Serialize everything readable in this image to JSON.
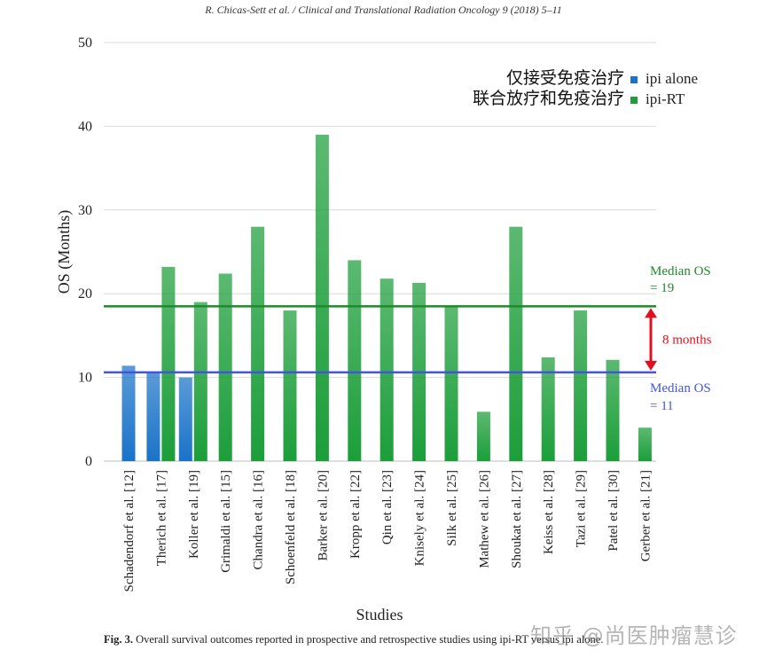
{
  "header": {
    "citation": "R. Chicas-Sett et al. / Clinical and Translational Radiation Oncology 9 (2018) 5–11"
  },
  "caption": {
    "label": "Fig. 3.",
    "text": "Overall survival outcomes reported in prospective and retrospective studies using ipi-RT versus ipi alone."
  },
  "watermark": "知乎 @尚医肿瘤慧诊",
  "colors": {
    "ipi_alone": "#1a73c8",
    "ipi_rt": "#1c9e3a",
    "median_rt_line": "#1f8a2a",
    "median_alone_line": "#4455dd",
    "arrow": "#e01020"
  },
  "chart_data": {
    "type": "bar",
    "xlabel": "Studies",
    "ylabel": "OS (Months)",
    "ylim": [
      0,
      50
    ],
    "yticks": [
      0,
      10,
      20,
      30,
      40,
      50
    ],
    "grid": true,
    "legend_position": "top-right",
    "categories": [
      "Schadendorf et al. [12]",
      "Therich et al. [17]",
      "Koller et al. [19]",
      "Grimaldi et al. [15]",
      "Chandra et al. [16]",
      "Schoenfeld et al. [18]",
      "Barker et al. [20]",
      "Kropp et al. [22]",
      "Qin et al. [23]",
      "Knisely et al. [24]",
      "Silk et al. [25]",
      "Mathew et al. [26]",
      "Shoukat et al. [27]",
      "Keiss et al. [28]",
      "Tazi et al. [29]",
      "Patel et al. [30]",
      "Gerber et al. [21]"
    ],
    "series": [
      {
        "name": "ipi alone",
        "legend_cn": "仅接受免疫治疗",
        "values": [
          11.4,
          10.5,
          10,
          null,
          null,
          null,
          null,
          null,
          null,
          null,
          null,
          null,
          null,
          null,
          null,
          null,
          null
        ]
      },
      {
        "name": "ipi-RT",
        "legend_cn": "联合放疗和免疫治疗",
        "values": [
          null,
          23.2,
          19,
          22.4,
          28,
          18,
          39,
          24,
          21.8,
          21.3,
          18.5,
          5.9,
          28,
          12.4,
          18,
          12.1,
          4
        ]
      }
    ],
    "reference_lines": [
      {
        "label": "Median OS",
        "label2": "= 19",
        "value": 18.5
      },
      {
        "label": "Median OS",
        "label2": "= 11",
        "value": 10.6
      }
    ],
    "annotation": "8 months"
  }
}
